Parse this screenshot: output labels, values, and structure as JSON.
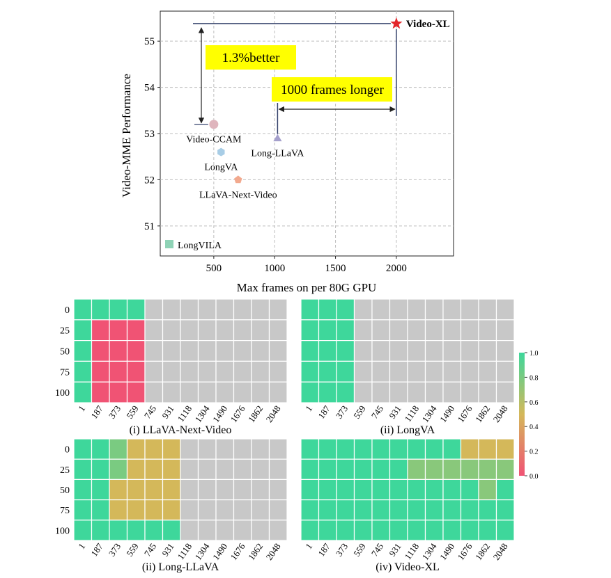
{
  "scatter": {
    "type": "scatter",
    "xlabel": "Max frames on per 80G GPU",
    "ylabel": "Video-MME Performance",
    "xlim": [
      60,
      2470
    ],
    "ylim": [
      50.35,
      55.65
    ],
    "xticks": [
      500,
      1000,
      1500,
      2000
    ],
    "yticks": [
      51,
      52,
      53,
      54,
      55
    ],
    "grid": true,
    "points": [
      {
        "name": "Video-XL",
        "x": 2000,
        "y": 55.38,
        "marker": "star",
        "color": "#e3262b",
        "bold": true,
        "label_pos": "right"
      },
      {
        "name": "Video-CCAM",
        "x": 500,
        "y": 53.2,
        "marker": "circle",
        "color": "#dfb5bd",
        "label_pos": "below"
      },
      {
        "name": "Long-LLaVA",
        "x": 1024,
        "y": 52.9,
        "marker": "triangle",
        "color": "#a5a0cc",
        "label_pos": "below"
      },
      {
        "name": "LongVA",
        "x": 560,
        "y": 52.6,
        "marker": "hexagon",
        "color": "#a8cde6",
        "label_pos": "below"
      },
      {
        "name": "LLaVA-Next-Video",
        "x": 700,
        "y": 52.0,
        "marker": "pentagon",
        "color": "#f2a98e",
        "label_pos": "below"
      }
    ],
    "legend": [
      {
        "name": "LongVILA",
        "color": "#8fd3b6",
        "marker": "square",
        "position": "bottom-left"
      }
    ],
    "annotations": [
      {
        "text": "1.3%better",
        "bg": "#ffff00"
      },
      {
        "text": "1000 frames longer",
        "bg": "#ffff00"
      }
    ]
  },
  "chart_data": {
    "type": "heatmap",
    "x_categories": [
      "1",
      "187",
      "373",
      "559",
      "745",
      "931",
      "1118",
      "1304",
      "1490",
      "1676",
      "1862",
      "2048"
    ],
    "y_categories": [
      "0",
      "25",
      "50",
      "75",
      "100"
    ],
    "colorbar": {
      "min": 0.0,
      "max": 1.0,
      "ticks": [
        "0.0",
        "0.2",
        "0.4",
        "0.6",
        "0.8",
        "1.0"
      ],
      "colors": [
        "#f05374",
        "#d4b85a",
        "#3ed79b"
      ]
    },
    "missing_color": "#c8c8c8",
    "panels": [
      {
        "title": "(i) LLaVA-Next-Video",
        "values": [
          [
            1,
            1,
            1,
            1,
            null,
            null,
            null,
            null,
            null,
            null,
            null,
            null
          ],
          [
            1,
            0,
            0,
            0,
            null,
            null,
            null,
            null,
            null,
            null,
            null,
            null
          ],
          [
            1,
            0,
            0,
            0,
            null,
            null,
            null,
            null,
            null,
            null,
            null,
            null
          ],
          [
            1,
            0,
            0,
            0,
            null,
            null,
            null,
            null,
            null,
            null,
            null,
            null
          ],
          [
            1,
            0,
            0,
            0,
            null,
            null,
            null,
            null,
            null,
            null,
            null,
            null
          ]
        ]
      },
      {
        "title": "(ii) LongVA",
        "values": [
          [
            1,
            1,
            1,
            null,
            null,
            null,
            null,
            null,
            null,
            null,
            null,
            null
          ],
          [
            1,
            1,
            1,
            null,
            null,
            null,
            null,
            null,
            null,
            null,
            null,
            null
          ],
          [
            1,
            1,
            1,
            null,
            null,
            null,
            null,
            null,
            null,
            null,
            null,
            null
          ],
          [
            1,
            1,
            1,
            null,
            null,
            null,
            null,
            null,
            null,
            null,
            null,
            null
          ],
          [
            1,
            1,
            1,
            null,
            null,
            null,
            null,
            null,
            null,
            null,
            null,
            null
          ]
        ]
      },
      {
        "title": "(ii) Long-LLaVA",
        "values": [
          [
            1,
            1,
            0.8,
            0.5,
            0.5,
            0.5,
            null,
            null,
            null,
            null,
            null,
            null
          ],
          [
            1,
            1,
            0.8,
            0.5,
            0.5,
            0.5,
            null,
            null,
            null,
            null,
            null,
            null
          ],
          [
            1,
            1,
            0.5,
            0.5,
            0.5,
            0.5,
            null,
            null,
            null,
            null,
            null,
            null
          ],
          [
            1,
            1,
            0.5,
            0.5,
            0.5,
            0.5,
            null,
            null,
            null,
            null,
            null,
            null
          ],
          [
            1,
            1,
            1,
            1,
            1,
            1,
            null,
            null,
            null,
            null,
            null,
            null
          ]
        ]
      },
      {
        "title": "(iv) Video-XL",
        "values": [
          [
            1,
            1,
            1,
            1,
            1,
            1,
            1,
            1,
            1,
            0.5,
            0.5,
            0.5
          ],
          [
            1,
            1,
            1,
            1,
            1,
            1,
            0.75,
            0.75,
            0.75,
            0.75,
            0.75,
            0.75
          ],
          [
            1,
            1,
            1,
            1,
            1,
            1,
            1,
            1,
            1,
            1,
            0.75,
            1
          ],
          [
            1,
            1,
            1,
            1,
            1,
            1,
            1,
            1,
            1,
            1,
            1,
            1
          ],
          [
            1,
            1,
            1,
            1,
            1,
            1,
            1,
            1,
            1,
            1,
            1,
            1
          ]
        ]
      }
    ]
  }
}
